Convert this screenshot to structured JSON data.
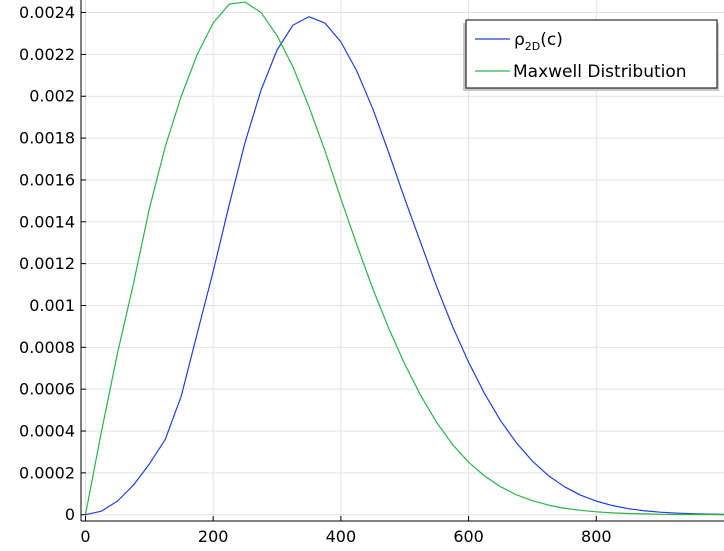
{
  "chart_data": {
    "type": "line",
    "title": "",
    "xlabel": "",
    "ylabel": "",
    "xlim": [
      -7,
      1000
    ],
    "ylim": [
      -3e-05,
      0.00246
    ],
    "grid": true,
    "legend_position": "top-right",
    "x_ticks": [
      {
        "value": 0,
        "label": "0"
      },
      {
        "value": 200,
        "label": "200"
      },
      {
        "value": 400,
        "label": "400"
      },
      {
        "value": 600,
        "label": "600"
      },
      {
        "value": 800,
        "label": "800"
      }
    ],
    "y_ticks": [
      {
        "value": 0,
        "label": "0"
      },
      {
        "value": 0.0002,
        "label": "0.0002"
      },
      {
        "value": 0.0004,
        "label": "0.0004"
      },
      {
        "value": 0.0006,
        "label": "0.0006"
      },
      {
        "value": 0.0008,
        "label": "0.0008"
      },
      {
        "value": 0.001,
        "label": "0.001"
      },
      {
        "value": 0.0012,
        "label": "0.0012"
      },
      {
        "value": 0.0014,
        "label": "0.0014"
      },
      {
        "value": 0.0016,
        "label": "0.0016"
      },
      {
        "value": 0.0018,
        "label": "0.0018"
      },
      {
        "value": 0.002,
        "label": "0.002"
      },
      {
        "value": 0.0022,
        "label": "0.0022"
      },
      {
        "value": 0.0024,
        "label": "0.0024"
      }
    ],
    "series": [
      {
        "name": "ρ2D(c)",
        "name_main": "ρ",
        "name_sub": "2D",
        "name_tail": "(c)",
        "color": "#1f3fe0",
        "x": [
          0,
          25,
          50,
          75,
          100,
          125,
          150,
          175,
          200,
          225,
          250,
          275,
          300,
          325,
          350,
          375,
          400,
          425,
          450,
          475,
          500,
          525,
          550,
          575,
          600,
          625,
          650,
          675,
          700,
          725,
          750,
          775,
          800,
          825,
          850,
          875,
          900,
          925,
          950,
          975,
          1000
        ],
        "y": [
          0,
          1.7e-05,
          6.5e-05,
          0.000141,
          0.000242,
          0.00036,
          0.000567,
          0.000866,
          0.001163,
          0.00148,
          0.00178,
          0.00203,
          0.002221,
          0.00234,
          0.00238,
          0.00235,
          0.00226,
          0.00212,
          0.00194,
          0.00173,
          0.00151,
          0.0013,
          0.00109,
          0.000899,
          0.000729,
          0.000579,
          0.00045,
          0.000343,
          0.000256,
          0.000187,
          0.000134,
          9.4e-05,
          6.5e-05,
          4.4e-05,
          2.9e-05,
          1.9e-05,
          1.2e-05,
          8e-06,
          5e-06,
          3e-06,
          2e-06
        ]
      },
      {
        "name": "Maxwell Distribution",
        "color": "#2ab34a",
        "x": [
          0,
          25,
          50,
          75,
          100,
          125,
          150,
          175,
          200,
          225,
          250,
          275,
          300,
          325,
          350,
          375,
          400,
          425,
          450,
          475,
          500,
          525,
          550,
          575,
          600,
          625,
          650,
          675,
          700,
          725,
          750,
          775,
          800,
          825,
          850,
          875,
          900,
          925,
          950,
          975,
          1000
        ],
        "y": [
          0,
          0.000397,
          0.00077,
          0.001102,
          0.001462,
          0.00176,
          0.002,
          0.0022,
          0.00235,
          0.00244,
          0.00245,
          0.0024,
          0.00229,
          0.00214,
          0.00195,
          0.00174,
          0.00151,
          0.00129,
          0.00108,
          0.00089,
          0.00072,
          0.00057,
          0.000441,
          0.000335,
          0.000251,
          0.000185,
          0.000134,
          9.5e-05,
          6.7e-05,
          4.6e-05,
          3.1e-05,
          2.1e-05,
          1.4e-05,
          9e-06,
          6e-06,
          4e-06,
          2e-06,
          1e-06,
          1e-06,
          1e-06,
          0
        ]
      }
    ]
  }
}
